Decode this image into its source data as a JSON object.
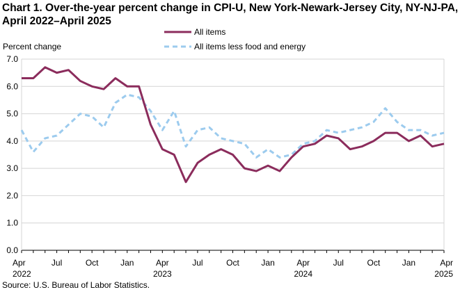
{
  "chart_data": {
    "type": "line",
    "title_line1": "Chart 1. Over-the-year percent change in CPI-U, New York-Newark-Jersey City, NY-NJ-PA,",
    "title_line2": "April 2022–April 2025",
    "ylabel": "Percent change",
    "ylim": [
      0,
      7
    ],
    "yticks": [
      "0.0",
      "1.0",
      "2.0",
      "3.0",
      "4.0",
      "5.0",
      "6.0",
      "7.0"
    ],
    "grid": true,
    "legend_position": "top-center",
    "x": [
      "Apr 2022",
      "May 2022",
      "Jun 2022",
      "Jul 2022",
      "Aug 2022",
      "Sep 2022",
      "Oct 2022",
      "Nov 2022",
      "Dec 2022",
      "Jan 2023",
      "Feb 2023",
      "Mar 2023",
      "Apr 2023",
      "May 2023",
      "Jun 2023",
      "Jul 2023",
      "Aug 2023",
      "Sep 2023",
      "Oct 2023",
      "Nov 2023",
      "Dec 2023",
      "Jan 2024",
      "Feb 2024",
      "Mar 2024",
      "Apr 2024",
      "May 2024",
      "Jun 2024",
      "Jul 2024",
      "Aug 2024",
      "Sep 2024",
      "Oct 2024",
      "Nov 2024",
      "Dec 2024",
      "Jan 2025",
      "Feb 2025",
      "Mar 2025",
      "Apr 2025"
    ],
    "xtick_labels": [
      {
        "index": 0,
        "month": "Apr",
        "year": "2022"
      },
      {
        "index": 3,
        "month": "Jul",
        "year": ""
      },
      {
        "index": 6,
        "month": "Oct",
        "year": ""
      },
      {
        "index": 9,
        "month": "Jan",
        "year": ""
      },
      {
        "index": 12,
        "month": "Apr",
        "year": "2023"
      },
      {
        "index": 15,
        "month": "Jul",
        "year": ""
      },
      {
        "index": 18,
        "month": "Oct",
        "year": ""
      },
      {
        "index": 21,
        "month": "Jan",
        "year": ""
      },
      {
        "index": 24,
        "month": "Apr",
        "year": "2024"
      },
      {
        "index": 27,
        "month": "Jul",
        "year": ""
      },
      {
        "index": 30,
        "month": "Oct",
        "year": ""
      },
      {
        "index": 33,
        "month": "Jan",
        "year": ""
      },
      {
        "index": 36,
        "month": "Apr",
        "year": "2025"
      }
    ],
    "series": [
      {
        "name": "All items",
        "color": "#8b2c5c",
        "style": "solid",
        "values": [
          6.3,
          6.3,
          6.7,
          6.5,
          6.6,
          6.2,
          6.0,
          5.9,
          6.3,
          6.0,
          6.0,
          4.6,
          3.7,
          3.5,
          2.5,
          3.2,
          3.5,
          3.7,
          3.5,
          3.0,
          2.9,
          3.1,
          2.9,
          3.4,
          3.8,
          3.9,
          4.2,
          4.1,
          3.7,
          3.8,
          4.0,
          4.3,
          4.3,
          4.0,
          4.2,
          3.8,
          3.9
        ]
      },
      {
        "name": "All items less food and energy",
        "color": "#9ccbee",
        "style": "dashed",
        "values": [
          4.4,
          3.6,
          4.1,
          4.2,
          4.6,
          5.0,
          4.9,
          4.5,
          5.4,
          5.7,
          5.6,
          5.1,
          4.4,
          5.1,
          3.8,
          4.4,
          4.5,
          4.1,
          4.0,
          3.9,
          3.4,
          3.7,
          3.4,
          3.5,
          3.9,
          4.0,
          4.4,
          4.3,
          4.4,
          4.5,
          4.7,
          5.2,
          4.7,
          4.4,
          4.4,
          4.2,
          4.3
        ]
      }
    ],
    "source": "Source: U.S. Bureau of Labor Statistics."
  }
}
